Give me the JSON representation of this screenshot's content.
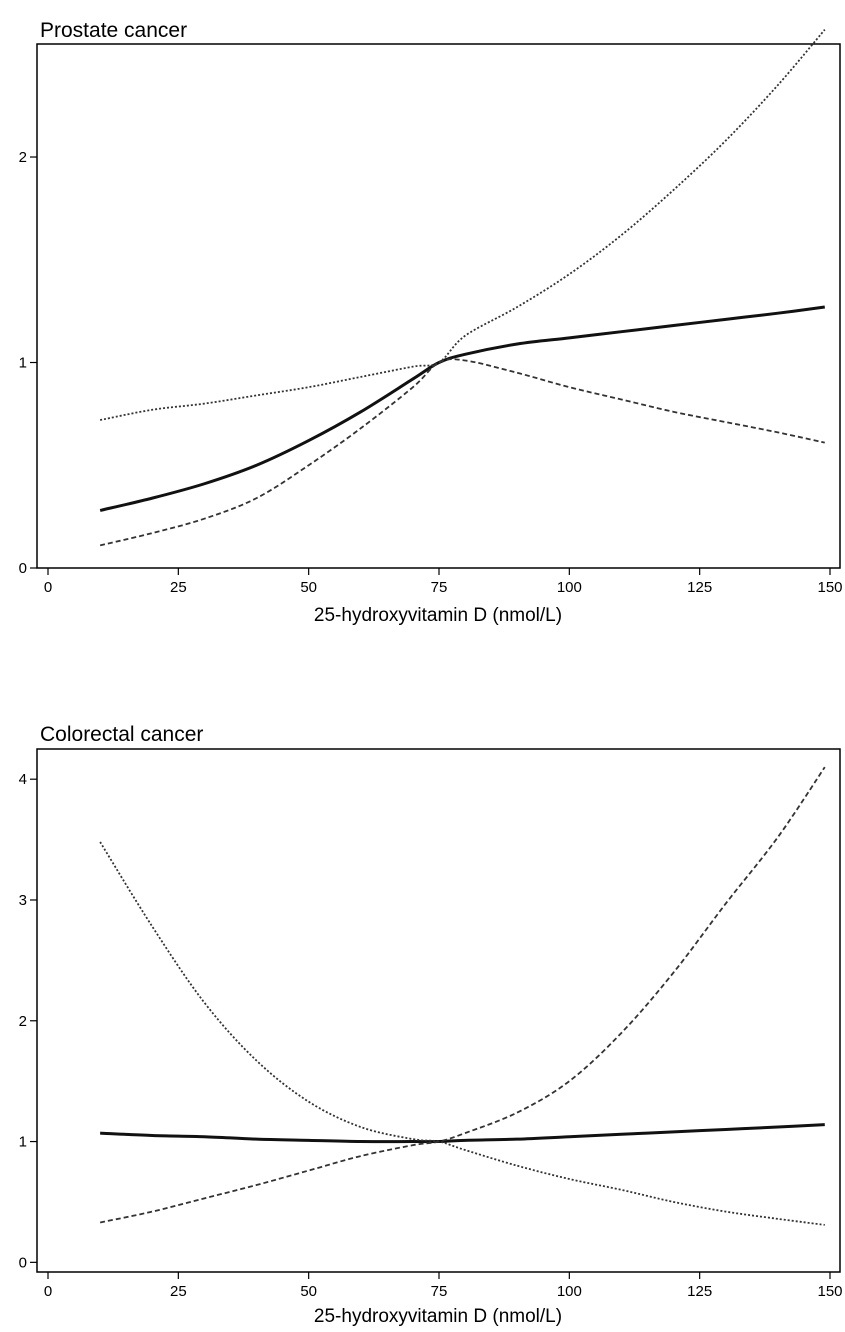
{
  "chart_data": [
    {
      "type": "line",
      "title": "Prostate cancer",
      "xlabel": "25-hydroxyvitamin D (nmol/L)",
      "ylabel": "",
      "xlim": [
        0,
        150
      ],
      "ylim": [
        0,
        2.55
      ],
      "x_ticks": [
        "0",
        "25",
        "50",
        "75",
        "100",
        "125",
        "150"
      ],
      "y_ticks": [
        "0",
        "1",
        "2"
      ],
      "grid": false,
      "x": [
        10,
        20,
        30,
        40,
        50,
        60,
        70,
        75,
        80,
        90,
        100,
        110,
        120,
        130,
        140,
        149
      ],
      "series": [
        {
          "style": "solid",
          "values": [
            0.28,
            0.34,
            0.41,
            0.5,
            0.62,
            0.76,
            0.92,
            1.0,
            1.04,
            1.09,
            1.12,
            1.15,
            1.18,
            1.21,
            1.24,
            1.27
          ]
        },
        {
          "style": "dotted",
          "values": [
            0.72,
            0.77,
            0.8,
            0.84,
            0.88,
            0.93,
            0.98,
            1.0,
            1.13,
            1.27,
            1.43,
            1.62,
            1.84,
            2.08,
            2.35,
            2.62
          ]
        },
        {
          "style": "dashed",
          "values": [
            0.11,
            0.17,
            0.24,
            0.34,
            0.5,
            0.68,
            0.88,
            1.0,
            1.01,
            0.95,
            0.88,
            0.82,
            0.76,
            0.71,
            0.66,
            0.61
          ]
        }
      ]
    },
    {
      "type": "line",
      "title": "Colorectal cancer",
      "xlabel": "25-hydroxyvitamin D (nmol/L)",
      "ylabel": "",
      "xlim": [
        0,
        150
      ],
      "ylim": [
        -0.08,
        4.25
      ],
      "x_ticks": [
        "0",
        "25",
        "50",
        "75",
        "100",
        "125",
        "150"
      ],
      "y_ticks": [
        "0",
        "1",
        "2",
        "3",
        "4"
      ],
      "grid": false,
      "x": [
        10,
        20,
        30,
        40,
        50,
        60,
        70,
        75,
        80,
        90,
        100,
        110,
        120,
        130,
        140,
        149
      ],
      "series": [
        {
          "style": "solid",
          "values": [
            1.07,
            1.05,
            1.04,
            1.02,
            1.01,
            1.0,
            1.0,
            1.0,
            1.01,
            1.02,
            1.04,
            1.06,
            1.08,
            1.1,
            1.12,
            1.14
          ]
        },
        {
          "style": "dotted",
          "values": [
            3.48,
            2.78,
            2.15,
            1.67,
            1.33,
            1.12,
            1.02,
            1.0,
            0.93,
            0.8,
            0.69,
            0.6,
            0.5,
            0.42,
            0.36,
            0.31
          ]
        },
        {
          "style": "dashed",
          "values": [
            0.33,
            0.42,
            0.53,
            0.64,
            0.76,
            0.88,
            0.97,
            1.0,
            1.07,
            1.24,
            1.5,
            1.9,
            2.4,
            2.97,
            3.52,
            4.1
          ]
        }
      ]
    }
  ]
}
